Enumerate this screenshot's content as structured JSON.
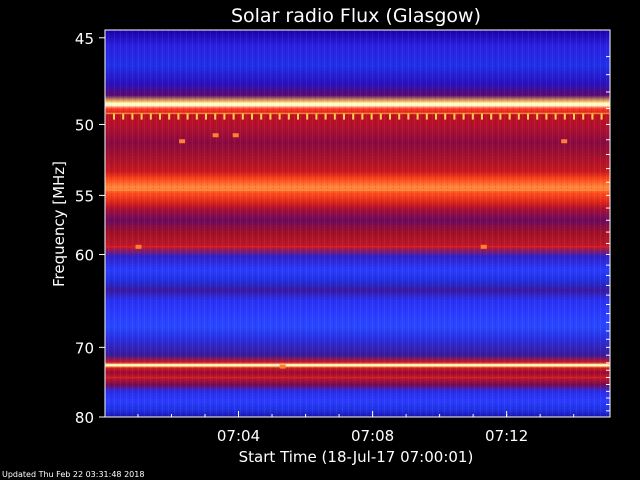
{
  "chart_data": {
    "type": "heatmap",
    "title": "Solar radio Flux (Glasgow)",
    "ylabel": "Frequency [MHz]",
    "xlabel": "Start Time (18-Jul-17 07:00:01)",
    "y_ticks": [
      45,
      50,
      55,
      60,
      70,
      80
    ],
    "y_tick_labels": [
      "45",
      "50",
      "55",
      "60",
      "70",
      "80"
    ],
    "ylim": [
      44.6,
      80
    ],
    "y_scale": "reciprocal",
    "x_ticks": [
      "07:04",
      "07:08",
      "07:12"
    ],
    "xlim": [
      "07:00:01",
      "07:15:05"
    ],
    "colormap": [
      "#000000",
      "#1a00b0",
      "#2a3cff",
      "#7a0a4a",
      "#c8102a",
      "#ff3a1a",
      "#ffb040",
      "#ffffe0"
    ],
    "emission_bands": [
      {
        "freq": 48.7,
        "intensity": "peak"
      },
      {
        "freq": 49.3,
        "intensity": "high"
      },
      {
        "freq": 54.6,
        "intensity": "high"
      },
      {
        "freq": 59.3,
        "intensity": "medium"
      },
      {
        "freq": 72.3,
        "intensity": "peak"
      },
      {
        "freq": 74.0,
        "intensity": "medium"
      }
    ],
    "grid": false
  },
  "footer": {
    "updated": "Updated Thu Feb 22 03:31:48 2018"
  }
}
